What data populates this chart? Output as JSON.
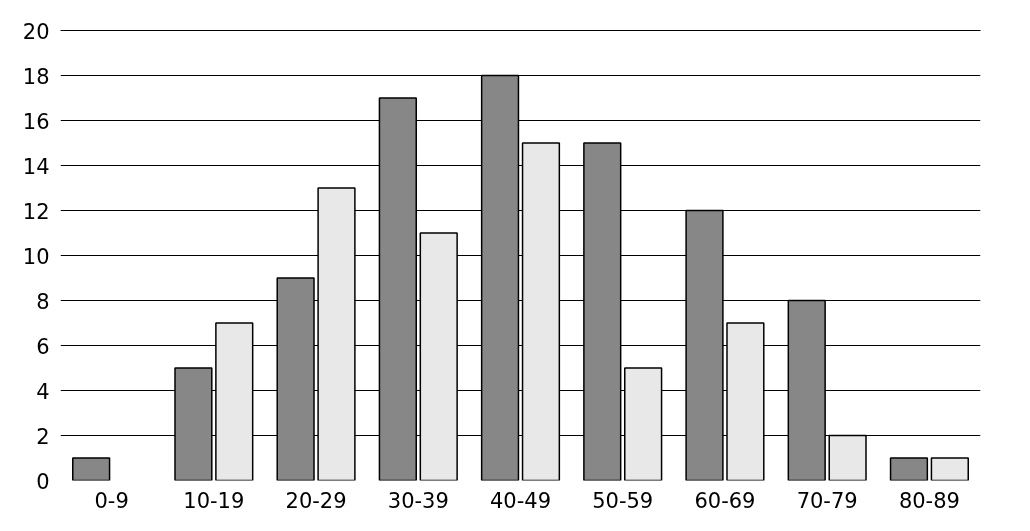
{
  "chart_data": {
    "type": "bar",
    "categories": [
      "0-9",
      "10-19",
      "20-29",
      "30-39",
      "40-49",
      "50-59",
      "60-69",
      "70-79",
      "80-89"
    ],
    "series": [
      {
        "color": "#878787",
        "values": [
          1,
          5,
          9,
          17,
          18,
          15,
          12,
          8,
          1
        ]
      },
      {
        "color": "#e8e8e8",
        "values": [
          null,
          7,
          13,
          11,
          15,
          5,
          7,
          2,
          1
        ]
      }
    ],
    "ylim": [
      0,
      20
    ],
    "yticks": [
      0,
      2,
      4,
      6,
      8,
      10,
      12,
      14,
      16,
      18,
      20
    ],
    "grid": "y"
  }
}
